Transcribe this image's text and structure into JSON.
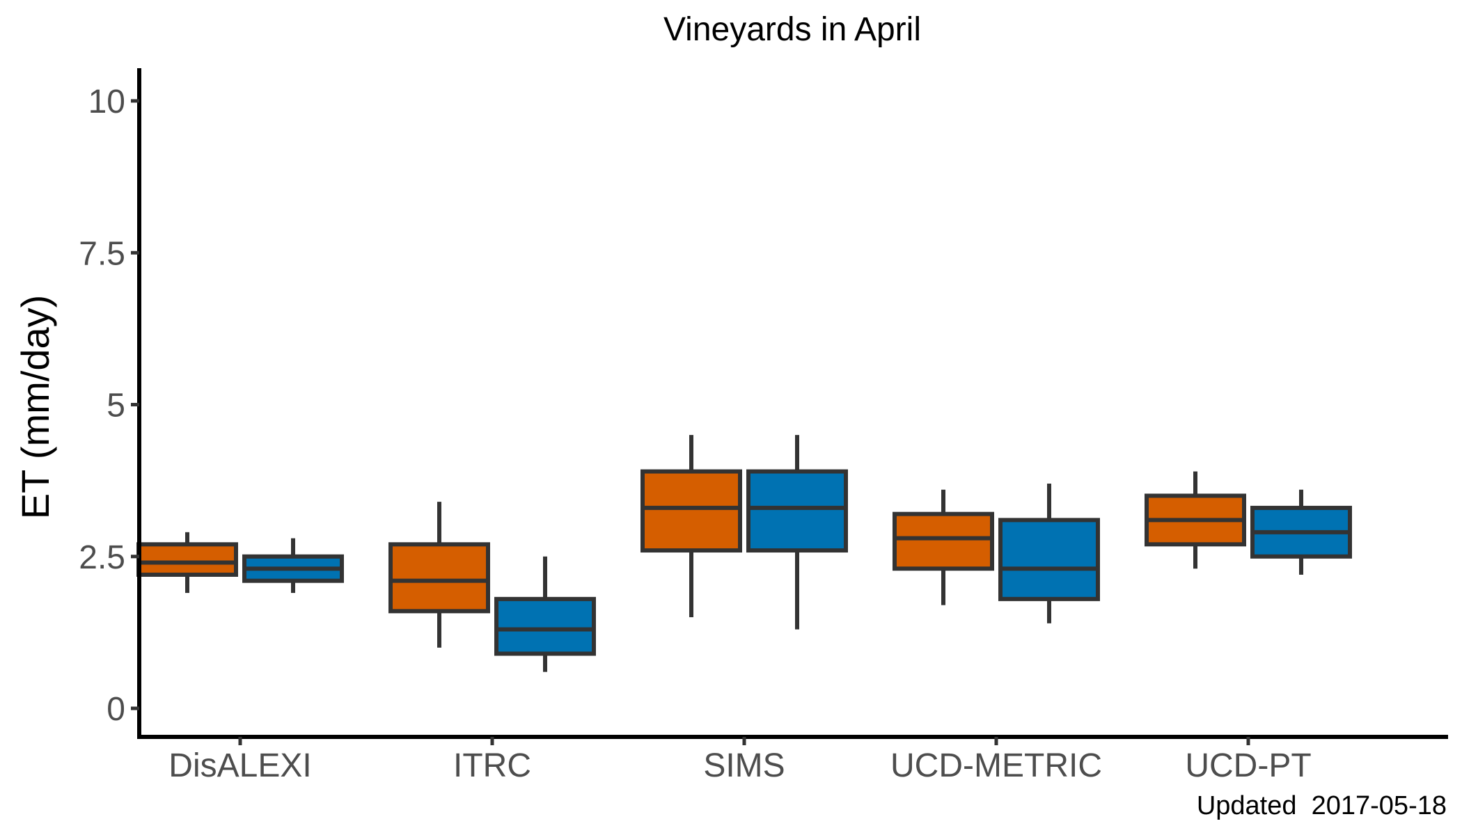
{
  "chart_data": {
    "type": "box",
    "title": "Vineyards in April",
    "xlabel": "",
    "ylabel": "ET (mm/day)",
    "ylim": [
      -0.5,
      10.5
    ],
    "yticks": [
      0,
      2.5,
      5,
      7.5,
      10
    ],
    "ytick_labels": [
      "0",
      "2.5",
      "5",
      "7.5",
      "10"
    ],
    "categories": [
      "DisALEXI",
      "ITRC",
      "SIMS",
      "UCD-METRIC",
      "UCD-PT"
    ],
    "grid": false,
    "legend": "none",
    "series": [
      {
        "color": "#D55E00",
        "boxes": [
          {
            "whisker_low": 1.9,
            "q1": 2.2,
            "median": 2.4,
            "q3": 2.7,
            "whisker_high": 2.9
          },
          {
            "whisker_low": 1.0,
            "q1": 1.6,
            "median": 2.1,
            "q3": 2.7,
            "whisker_high": 3.4
          },
          {
            "whisker_low": 1.5,
            "q1": 2.6,
            "median": 3.3,
            "q3": 3.9,
            "whisker_high": 4.5
          },
          {
            "whisker_low": 1.7,
            "q1": 2.3,
            "median": 2.8,
            "q3": 3.2,
            "whisker_high": 3.6
          },
          {
            "whisker_low": 2.3,
            "q1": 2.7,
            "median": 3.1,
            "q3": 3.5,
            "whisker_high": 3.9
          }
        ]
      },
      {
        "color": "#0072B2",
        "boxes": [
          {
            "whisker_low": 1.9,
            "q1": 2.1,
            "median": 2.3,
            "q3": 2.5,
            "whisker_high": 2.8
          },
          {
            "whisker_low": 0.6,
            "q1": 0.9,
            "median": 1.3,
            "q3": 1.8,
            "whisker_high": 2.5
          },
          {
            "whisker_low": 1.3,
            "q1": 2.6,
            "median": 3.3,
            "q3": 3.9,
            "whisker_high": 4.5
          },
          {
            "whisker_low": 1.4,
            "q1": 1.8,
            "median": 2.3,
            "q3": 3.1,
            "whisker_high": 3.7
          },
          {
            "whisker_low": 2.2,
            "q1": 2.5,
            "median": 2.9,
            "q3": 3.3,
            "whisker_high": 3.6
          }
        ]
      }
    ],
    "caption": "Updated  2017-05-18"
  }
}
